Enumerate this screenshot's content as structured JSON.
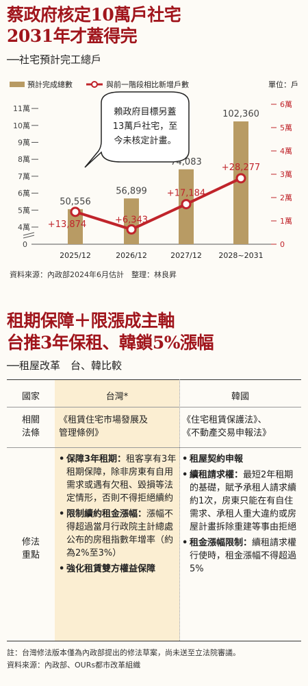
{
  "top": {
    "title_line1": "蔡政府核定10萬戶社宅",
    "title_line2": "2031年才蓋得完",
    "subtitle": "──社宅預計完工總戶"
  },
  "chart_data": {
    "type": "bar",
    "categories": [
      "2025/12",
      "2026/12",
      "2027/12",
      "2028~2031"
    ],
    "series": [
      {
        "name": "預計完成總數",
        "values": [
          50556,
          56899,
          74083,
          102360
        ],
        "labels": [
          "50,556",
          "56,899",
          "74,083",
          "102,360"
        ],
        "axis": "left"
      },
      {
        "name": "與前一階段相比新增戶數",
        "type": "line",
        "values": [
          13874,
          6343,
          17184,
          28277
        ],
        "labels": [
          "+13,874",
          "+6,343",
          "+17,184",
          "+28,277"
        ],
        "axis": "right"
      }
    ],
    "left_ticks": [
      "0",
      "4萬",
      "5萬",
      "6萬",
      "7萬",
      "8萬",
      "9萬",
      "10萬",
      "11萬"
    ],
    "right_ticks": [
      "0",
      "1萬",
      "2萬",
      "3萬",
      "4萬",
      "5萬",
      "6萬"
    ],
    "ylim_left": [
      0,
      110000
    ],
    "ylim_right": [
      0,
      60000
    ],
    "unit_label": "單位：戶",
    "annotation": [
      "賴政府目標另蓋",
      "13萬戶社宅，至",
      "今未核定計畫。"
    ],
    "colors": {
      "bar": "#b89b64",
      "line": "#c0242b",
      "right_axis": "#c0242b"
    }
  },
  "chart_source": "資料來源：內政部2024年6月估計　整理：林良昇",
  "second": {
    "title_line1": "租期保障＋限漲成主軸",
    "title_line2": "台推3年保租、韓鎖5%漲幅",
    "subtitle": "──租屋改革　台、韓比較"
  },
  "table": {
    "headers": [
      "國家",
      "台灣*",
      "韓國"
    ],
    "row1": {
      "label": [
        "相關",
        "法條"
      ],
      "tw": [
        "《租賃住宅市場發展及",
        "管理條例》"
      ],
      "kr": [
        "《住宅租賃保護法》、",
        "《不動產交易申報法》"
      ]
    },
    "row2": {
      "label": [
        "修法",
        "重點"
      ],
      "tw": [
        {
          "bold": "保障3年租期：",
          "text": "租客享有3年租期保障，除非房東有自用需求或遇有欠租、毀損等法定情形，否則不得拒絕續約"
        },
        {
          "bold": "限制續約租金漲幅：",
          "text": "漲幅不得超過當月行政院主計總處公布的房租指數年增率（約為2%至3%）"
        },
        {
          "bold": "強化租賃雙方權益保障",
          "text": ""
        }
      ],
      "kr": [
        {
          "bold": "租屋契約申報",
          "text": ""
        },
        {
          "bold": "續租請求權：",
          "text": "最短2年租期的基礎，賦予承租人請求續約1次，房東只能在有自住需求、承租人重大違約或房屋計畫拆除重建等事由拒絕"
        },
        {
          "bold": "租金漲幅限制：",
          "text": "續租請求權行使時，租金漲幅不得超過5%"
        }
      ]
    }
  },
  "notes": {
    "note1": "註：台灣修法版本僅為內政部提出的修法草案，尚未送至立法院審議。",
    "note2": "資料來源：內政部、OURs都市改革組織"
  }
}
